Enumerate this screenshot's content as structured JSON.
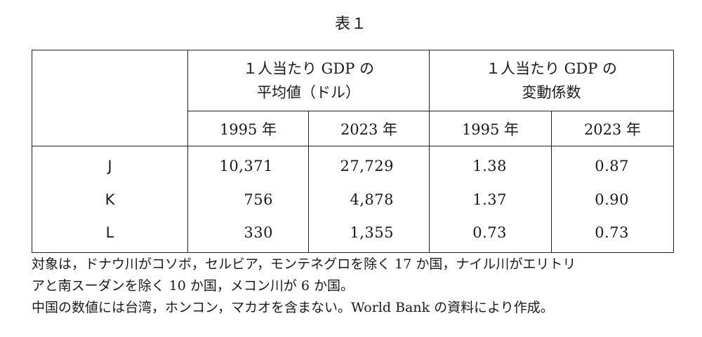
{
  "title": "表１",
  "header": {
    "group1_line1": "１人当たり GDP の",
    "group1_line2": "平均値（ドル）",
    "group2_line1": "１人当たり GDP の",
    "group2_line2": "変動係数",
    "year_1995": "1995 年",
    "year_2023": "2023 年"
  },
  "rows": [
    {
      "label": "J",
      "gdp_1995": "10,371",
      "gdp_2023": "27,729",
      "cv_1995": "1.38",
      "cv_2023": "0.87"
    },
    {
      "label": "K",
      "gdp_1995": "756",
      "gdp_2023": "4,878",
      "cv_1995": "1.37",
      "cv_2023": "0.90"
    },
    {
      "label": "L",
      "gdp_1995": "330",
      "gdp_2023": "1,355",
      "cv_1995": "0.73",
      "cv_2023": "0.73"
    }
  ],
  "notes": {
    "line1": "対象は，ドナウ川がコソボ，セルビア，モンテネグロを除く 17 か国，ナイル川がエリトリ",
    "line2": "アと南スーダンを除く 10 か国，メコン川が 6 か国。",
    "line3": "中国の数値には台湾，ホンコン，マカオを含まない。World Bank の資料により作成。"
  }
}
